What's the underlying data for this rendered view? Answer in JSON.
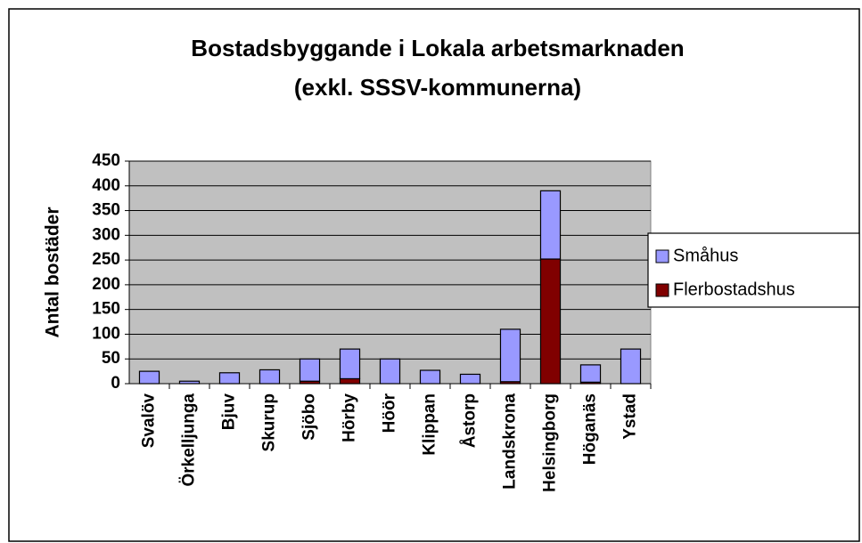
{
  "chart_data": {
    "type": "stacked_bar",
    "title": [
      "Bostadsbyggande i Lokala arbetsmarknaden",
      "(exkl. SSSV-kommunerna)"
    ],
    "y_label": "Antal bostäder",
    "categories": [
      "Svalöv",
      "Örkelljunga",
      "Bjuv",
      "Skurup",
      "Sjöbo",
      "Hörby",
      "Höör",
      "Klippan",
      "Åstorp",
      "Landskrona",
      "Helsingborg",
      "Höganäs",
      "Ystad"
    ],
    "series": [
      {
        "name": "Småhus",
        "color": "#9999ff",
        "values": [
          25,
          5,
          22,
          28,
          45,
          60,
          50,
          27,
          19,
          106,
          138,
          35,
          70
        ]
      },
      {
        "name": "Flerbostadshus",
        "color": "#800000",
        "values": [
          0,
          0,
          0,
          0,
          5,
          10,
          0,
          0,
          0,
          4,
          252,
          3,
          0
        ]
      }
    ],
    "ylim": [
      0,
      450
    ],
    "yticks": [
      0,
      50,
      100,
      150,
      200,
      250,
      300,
      350,
      400,
      450
    ],
    "grid": true
  }
}
